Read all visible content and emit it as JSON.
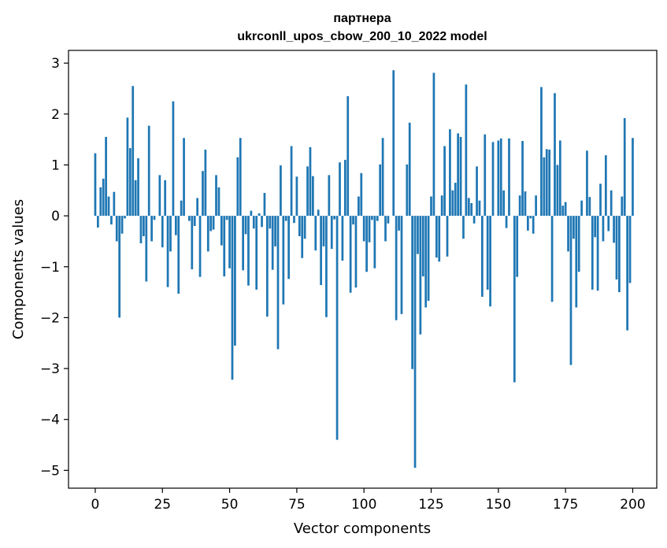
{
  "chart_data": {
    "type": "bar",
    "title": "партнера",
    "subtitle": "ukrconll_upos_cbow_200_10_2022 model",
    "xlabel": "Vector components",
    "ylabel": "Components values",
    "xlim": [
      -9.95,
      208.95
    ],
    "ylim": [
      -5.35,
      3.25
    ],
    "x_ticks": [
      0,
      25,
      50,
      75,
      100,
      125,
      150,
      175,
      200
    ],
    "y_ticks": [
      -5,
      -4,
      -3,
      -2,
      -1,
      0,
      1,
      2,
      3
    ],
    "grid": false,
    "bar_color": "#1f77b4",
    "values": [
      1.23,
      -0.23,
      0.56,
      0.73,
      1.55,
      0.38,
      -0.17,
      0.47,
      -0.5,
      -2.0,
      -0.35,
      -0.05,
      1.93,
      1.33,
      2.55,
      0.7,
      1.13,
      -0.54,
      -0.4,
      -1.29,
      1.77,
      -0.5,
      -0.08,
      0.0,
      0.8,
      -0.62,
      0.7,
      -1.4,
      -0.7,
      2.25,
      -0.38,
      -1.53,
      0.3,
      1.53,
      0.0,
      -0.1,
      -1.05,
      -0.2,
      0.35,
      -1.2,
      0.88,
      1.3,
      -0.7,
      -0.3,
      -0.27,
      0.8,
      0.56,
      -0.58,
      -1.19,
      -0.08,
      -1.03,
      -3.22,
      -2.55,
      1.15,
      1.53,
      -1.07,
      -0.36,
      -1.37,
      0.1,
      -0.25,
      -1.45,
      0.05,
      -0.22,
      0.45,
      -1.98,
      -0.25,
      -1.06,
      -0.6,
      -2.62,
      0.99,
      -1.74,
      -0.1,
      -1.24,
      1.37,
      -0.14,
      0.77,
      -0.4,
      -0.83,
      -0.45,
      0.97,
      1.35,
      0.78,
      -0.68,
      0.12,
      -1.36,
      -0.6,
      -1.99,
      0.8,
      -0.65,
      -0.07,
      -4.4,
      1.05,
      -0.88,
      1.1,
      2.35,
      -1.51,
      -0.17,
      -1.41,
      0.38,
      0.84,
      -0.5,
      -1.1,
      -0.52,
      -0.08,
      -1.03,
      -0.1,
      1.01,
      1.53,
      -0.5,
      -0.15,
      0.0,
      2.86,
      -2.05,
      -0.29,
      -1.93,
      0.0,
      1.01,
      1.83,
      -3.01,
      -4.95,
      -0.75,
      -2.33,
      -1.19,
      -1.8,
      -1.67,
      0.38,
      2.81,
      -0.82,
      -0.9,
      0.4,
      1.37,
      -0.8,
      1.7,
      0.5,
      0.65,
      1.62,
      1.55,
      -0.45,
      2.58,
      0.35,
      0.25,
      -0.15,
      0.97,
      0.3,
      -1.59,
      1.6,
      -1.45,
      -1.78,
      1.45,
      0.0,
      1.48,
      1.52,
      0.5,
      -0.24,
      1.52,
      0.0,
      -3.27,
      -1.2,
      0.4,
      1.47,
      0.48,
      -0.29,
      -0.05,
      -0.35,
      0.4,
      0.0,
      2.53,
      1.15,
      1.31,
      1.3,
      -1.69,
      2.41,
      1.0,
      1.48,
      0.2,
      0.27,
      -0.7,
      -2.93,
      -0.45,
      -1.8,
      -1.1,
      0.3,
      0.0,
      1.28,
      0.37,
      -1.45,
      -0.42,
      -1.47,
      0.63,
      -0.5,
      1.19,
      -0.3,
      0.5,
      -0.53,
      -1.25,
      -1.5,
      0.38,
      1.92,
      -2.25,
      -1.32,
      1.53
    ]
  }
}
